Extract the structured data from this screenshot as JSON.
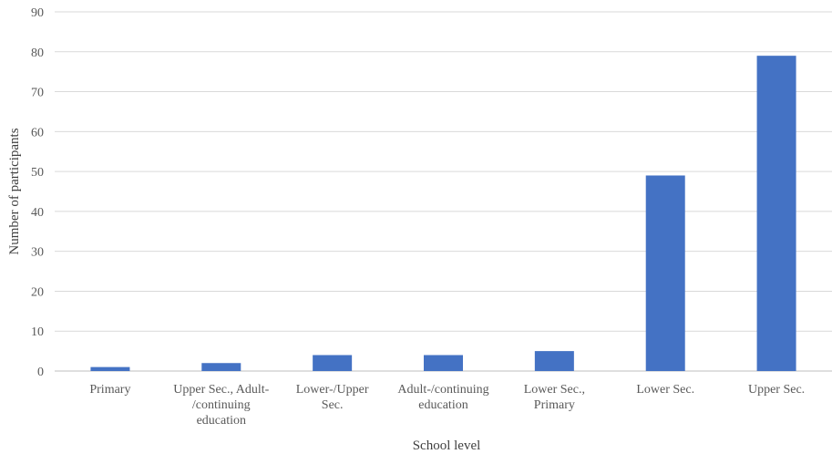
{
  "chart_data": {
    "type": "bar",
    "title": "",
    "xlabel": "School level",
    "ylabel": "Number of participants",
    "ylim": [
      0,
      90
    ],
    "yticks": [
      0,
      10,
      20,
      30,
      40,
      50,
      60,
      70,
      80,
      90
    ],
    "grid": true,
    "legend": "none",
    "bar_color": "#4472C4",
    "categories": [
      [
        "Primary"
      ],
      [
        "Upper Sec., Adult-",
        "/continuing",
        "education"
      ],
      [
        "Lower-/Upper",
        "Sec."
      ],
      [
        "Adult-/continuing",
        "education"
      ],
      [
        "Lower Sec.,",
        "Primary"
      ],
      [
        "Lower Sec."
      ],
      [
        "Upper Sec."
      ]
    ],
    "values": [
      1,
      2,
      4,
      4,
      5,
      49,
      79
    ]
  }
}
